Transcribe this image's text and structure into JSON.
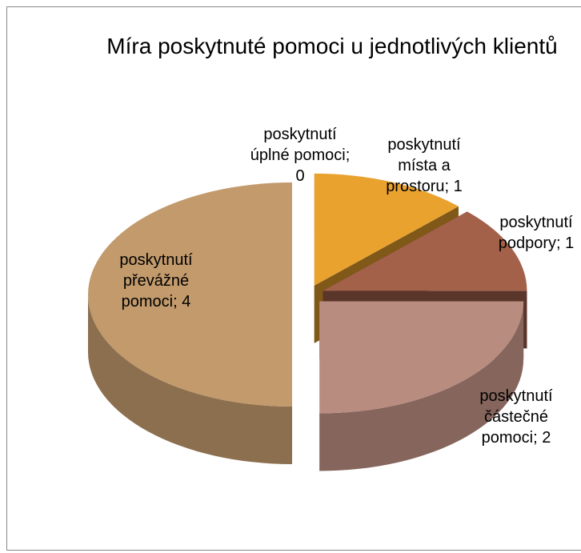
{
  "chart_data": {
    "type": "pie3d",
    "title": "Míra poskytnuté pomoci u jednotlivých klientů",
    "categories": [
      "poskytnutí úplné pomoci",
      "poskytnutí místa a prostoru",
      "poskytnutí podpory",
      "poskytnutí částečné pomoci",
      "poskytnutí převážné pomoci"
    ],
    "values": [
      0,
      1,
      1,
      2,
      4
    ],
    "value_labels": [
      "poskytnutí úplné pomoci; 0",
      "poskytnutí místa a prostoru; 1",
      "poskytnutí podpory; 1",
      "poskytnutí částečné pomoci; 2",
      "poskytnutí převážné pomoci; 4"
    ],
    "colors": [
      "#c0504d",
      "#e9a22e",
      "#a3614a",
      "#b98c80",
      "#c29a6c"
    ],
    "exploded": true
  }
}
